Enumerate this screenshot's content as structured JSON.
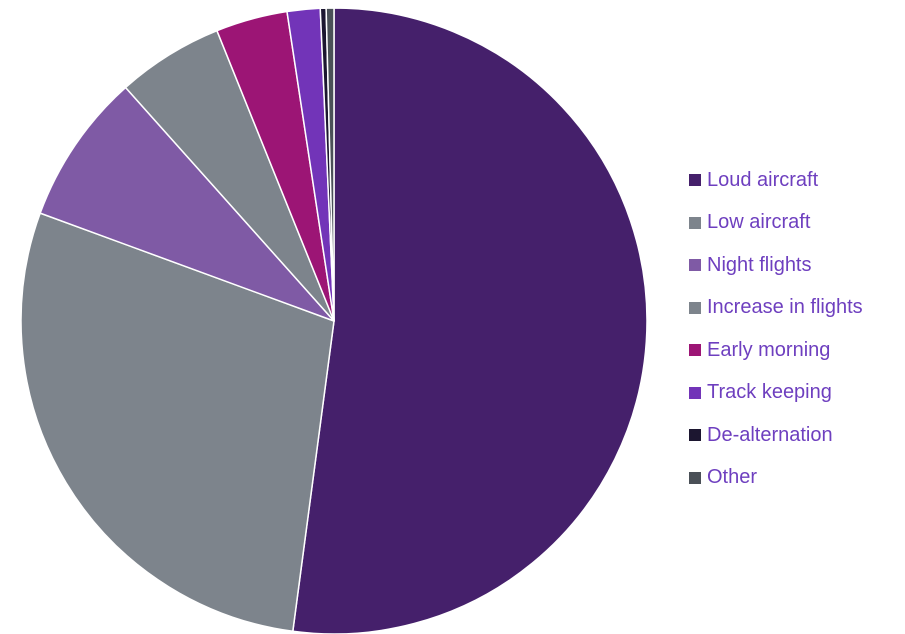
{
  "chart_data": {
    "type": "pie",
    "categories": [
      "Loud aircraft",
      "Low aircraft",
      "Night flights",
      "Increase in flights",
      "Early morning",
      "Track keeping",
      "De-alternation",
      "Other"
    ],
    "values": [
      52.1,
      28.5,
      7.8,
      5.5,
      3.7,
      1.7,
      0.3,
      0.4
    ],
    "colors": [
      "#45206b",
      "#7d848c",
      "#7f5aa5",
      "#7d848c",
      "#9c1575",
      "#7234b8",
      "#1c1630",
      "#4a5057"
    ],
    "start_angle_deg": 0,
    "direction": "clockwise",
    "legend_position": "right",
    "legend_text_color": "#6e3fbf"
  }
}
